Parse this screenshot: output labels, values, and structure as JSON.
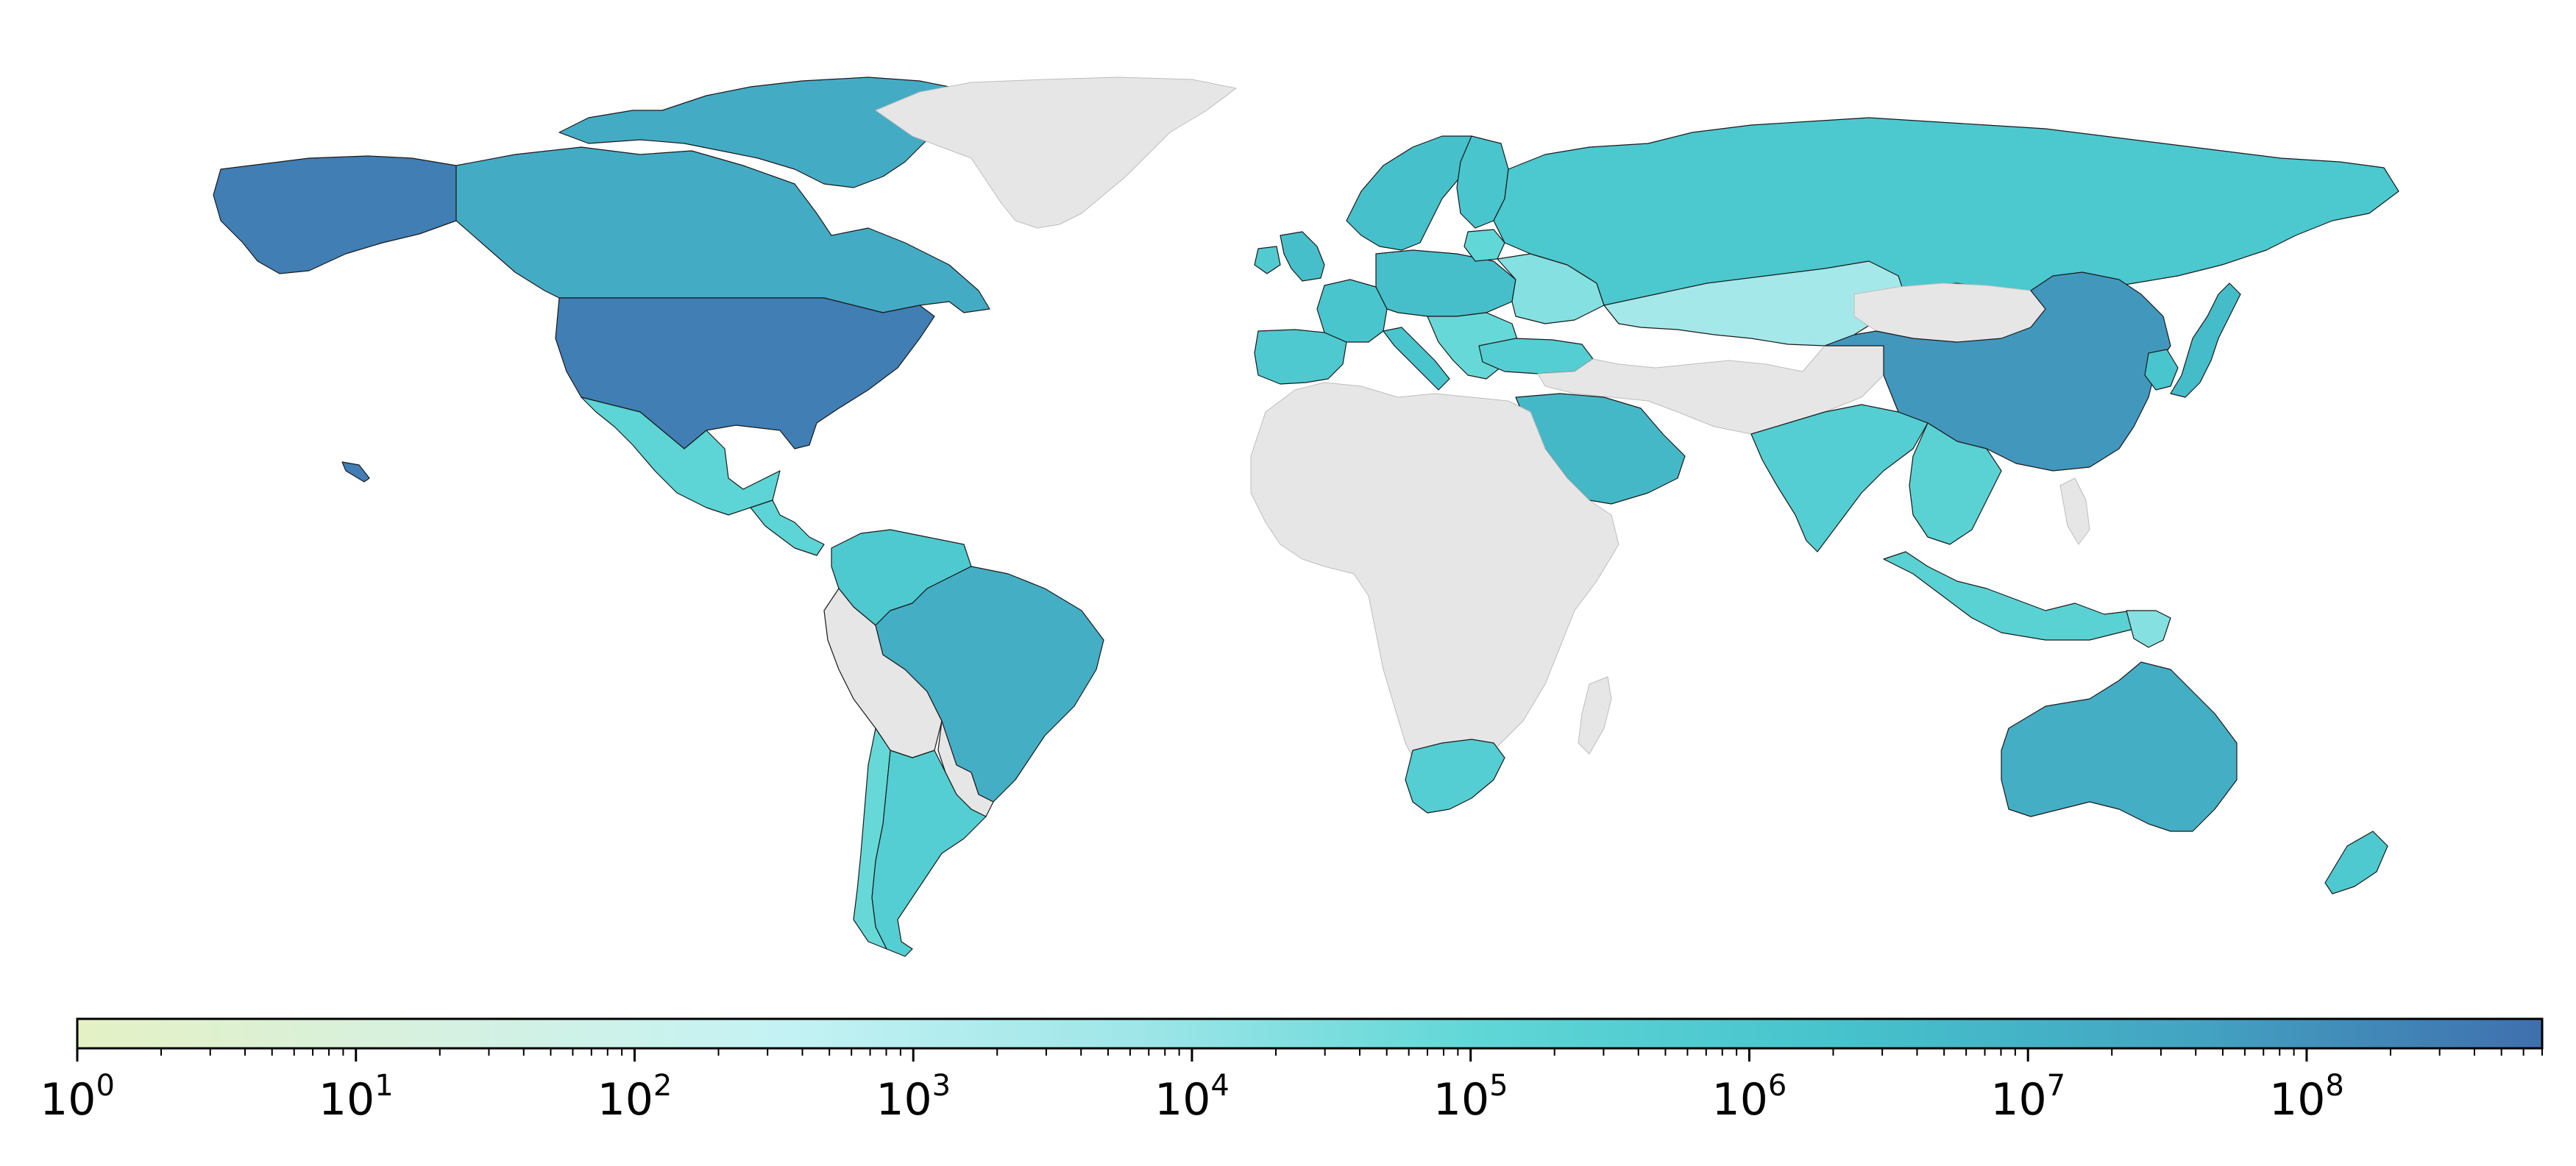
{
  "map": {
    "projection": "plate-carree",
    "no_data_color": "#e6e6e6",
    "border_color": "#1a1a1a",
    "colorscale": "YlGnBu",
    "scale": "log",
    "regions": [
      {
        "name": "alaska",
        "value": 300000000
      },
      {
        "name": "canada",
        "value": 20000000
      },
      {
        "name": "canadian-arctic-islands",
        "value": 20000000
      },
      {
        "name": "greenland",
        "value": null
      },
      {
        "name": "united-states",
        "value": 300000000
      },
      {
        "name": "mexico",
        "value": 150000
      },
      {
        "name": "central-america",
        "value": 150000
      },
      {
        "name": "colombia-venezuela",
        "value": 800000
      },
      {
        "name": "brazil",
        "value": 15000000
      },
      {
        "name": "peru-bolivia",
        "value": null
      },
      {
        "name": "chile",
        "value": 80000
      },
      {
        "name": "argentina",
        "value": 400000
      },
      {
        "name": "uruguay-paraguay",
        "value": null
      },
      {
        "name": "iberia",
        "value": 800000
      },
      {
        "name": "france",
        "value": 1500000
      },
      {
        "name": "uk",
        "value": 3000000
      },
      {
        "name": "ireland",
        "value": 600000
      },
      {
        "name": "central-europe",
        "value": 3000000
      },
      {
        "name": "italy",
        "value": 1500000
      },
      {
        "name": "balkans",
        "value": 80000
      },
      {
        "name": "scandinavia",
        "value": 2500000
      },
      {
        "name": "finland",
        "value": 1500000
      },
      {
        "name": "baltics",
        "value": 100000
      },
      {
        "name": "ukraine-belarus",
        "value": 20000
      },
      {
        "name": "russia",
        "value": 1000000
      },
      {
        "name": "kazakhstan",
        "value": 4000
      },
      {
        "name": "turkey",
        "value": 400000
      },
      {
        "name": "middle-east",
        "value": null
      },
      {
        "name": "saudi-arabia",
        "value": 6000000
      },
      {
        "name": "africa",
        "value": null
      },
      {
        "name": "madagascar",
        "value": null
      },
      {
        "name": "south-africa",
        "value": 400000
      },
      {
        "name": "mongolia",
        "value": null
      },
      {
        "name": "china",
        "value": 80000000
      },
      {
        "name": "india",
        "value": 400000
      },
      {
        "name": "southeast-asia",
        "value": 200000
      },
      {
        "name": "korea",
        "value": 1500000
      },
      {
        "name": "japan",
        "value": 4000000
      },
      {
        "name": "indonesia",
        "value": 200000
      },
      {
        "name": "philippines",
        "value": null
      },
      {
        "name": "papua-new-guinea",
        "value": 20000
      },
      {
        "name": "australia",
        "value": 15000000
      },
      {
        "name": "new-zealand",
        "value": 800000
      },
      {
        "name": "hawaii",
        "value": 300000000
      }
    ]
  },
  "colorbar": {
    "min": 1,
    "max": 700000000,
    "ticks": [
      {
        "base": "10",
        "exp": "0",
        "value": 1
      },
      {
        "base": "10",
        "exp": "1",
        "value": 10
      },
      {
        "base": "10",
        "exp": "2",
        "value": 100
      },
      {
        "base": "10",
        "exp": "3",
        "value": 1000
      },
      {
        "base": "10",
        "exp": "4",
        "value": 10000
      },
      {
        "base": "10",
        "exp": "5",
        "value": 100000
      },
      {
        "base": "10",
        "exp": "6",
        "value": 1000000
      },
      {
        "base": "10",
        "exp": "7",
        "value": 10000000
      },
      {
        "base": "10",
        "exp": "8",
        "value": 100000000
      }
    ],
    "color_stops": [
      "#ffffd9",
      "#edf8b1",
      "#c7e9b4",
      "#7fcdbb",
      "#41b6c4",
      "#1d91c0",
      "#225ea8",
      "#253494"
    ],
    "display_stops": [
      "#e4f1c4",
      "#d6f1e0",
      "#c4f2f4",
      "#9fe6e8",
      "#5fd6d6",
      "#46c3cc",
      "#43a4c2",
      "#3f6fae"
    ]
  }
}
